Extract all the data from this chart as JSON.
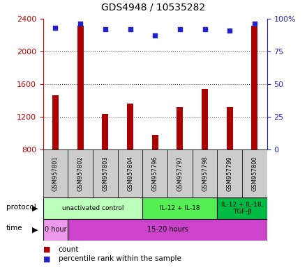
{
  "title": "GDS4948 / 10535282",
  "samples": [
    "GSM957801",
    "GSM957802",
    "GSM957803",
    "GSM957804",
    "GSM957796",
    "GSM957797",
    "GSM957798",
    "GSM957799",
    "GSM957800"
  ],
  "counts": [
    1460,
    2310,
    1230,
    1360,
    980,
    1320,
    1540,
    1320,
    2310
  ],
  "percentile_ranks": [
    93,
    96,
    92,
    92,
    87,
    92,
    92,
    91,
    96
  ],
  "ylim_left": [
    800,
    2400
  ],
  "ylim_right": [
    0,
    100
  ],
  "yticks_left": [
    800,
    1200,
    1600,
    2000,
    2400
  ],
  "yticks_right": [
    0,
    25,
    50,
    75,
    100
  ],
  "ytick_labels_right": [
    "0",
    "25",
    "50",
    "75",
    "100%"
  ],
  "bar_color": "#aa0000",
  "dot_color": "#2222cc",
  "bar_width": 0.25,
  "protocol_groups": [
    {
      "label": "unactivated control",
      "start": 0,
      "end": 4,
      "color": "#bbffbb"
    },
    {
      "label": "IL-12 + IL-18",
      "start": 4,
      "end": 7,
      "color": "#55ee55"
    },
    {
      "label": "IL-12 + IL-18,\nTGF-β",
      "start": 7,
      "end": 9,
      "color": "#00bb44"
    }
  ],
  "time_groups": [
    {
      "label": "0 hour",
      "start": 0,
      "end": 1,
      "color": "#ee99ee"
    },
    {
      "label": "15-20 hours",
      "start": 1,
      "end": 9,
      "color": "#cc44cc"
    }
  ],
  "protocol_label": "protocol",
  "time_label": "time",
  "legend_count": "count",
  "legend_pct": "percentile rank within the sample",
  "grid_color": "#555555",
  "left_axis_color": "#cc0000",
  "right_axis_color": "#2222cc",
  "bg_color": "#ffffff"
}
